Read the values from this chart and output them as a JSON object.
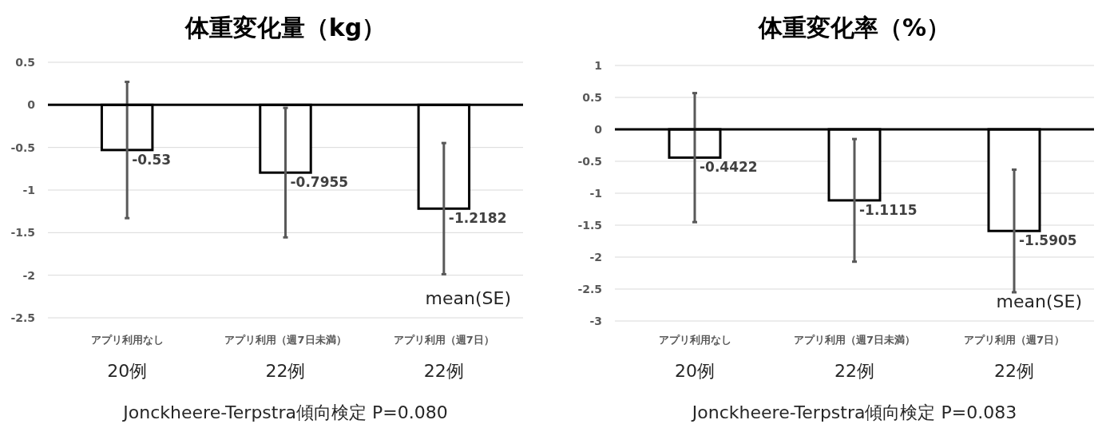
{
  "chart_data": [
    {
      "type": "bar",
      "title": "体重変化量（kg）",
      "categories": [
        "アプリ利用なし",
        "アプリ利用（週7日未満）",
        "アプリ利用（週7日）"
      ],
      "series": [
        {
          "color": "#ffffff",
          "values": [
            -0.53,
            -0.7955,
            -1.2182
          ],
          "errors": [
            0.8,
            0.76,
            0.77
          ]
        }
      ],
      "ylim": [
        -2.5,
        0.5
      ],
      "yticks": [
        -2.5,
        -2,
        -1.5,
        -1,
        -0.5,
        0,
        0.5
      ],
      "grid": "y",
      "data_labels": true,
      "annotations": [
        "20例",
        "22例",
        "22例",
        "mean(SE)",
        "Jonckheere-Terpstra傾向検定 P=0.080"
      ]
    },
    {
      "type": "bar",
      "title": "体重変化率（%）",
      "categories": [
        "アプリ利用なし",
        "アプリ利用（週7日未満）",
        "アプリ利用（週7日）"
      ],
      "series": [
        {
          "color": "#ffffff",
          "values": [
            -0.4422,
            -1.1115,
            -1.5905
          ],
          "errors": [
            1.01,
            0.96,
            0.96
          ]
        }
      ],
      "ylim": [
        -3,
        1
      ],
      "yticks": [
        -3,
        -2.5,
        -2,
        -1.5,
        -1,
        -0.5,
        0,
        0.5,
        1
      ],
      "grid": "y",
      "data_labels": true,
      "annotations": [
        "20例",
        "22例",
        "22例",
        "mean(SE)",
        "Jonckheere-Terpstra傾向検定 P=0.083"
      ]
    }
  ]
}
